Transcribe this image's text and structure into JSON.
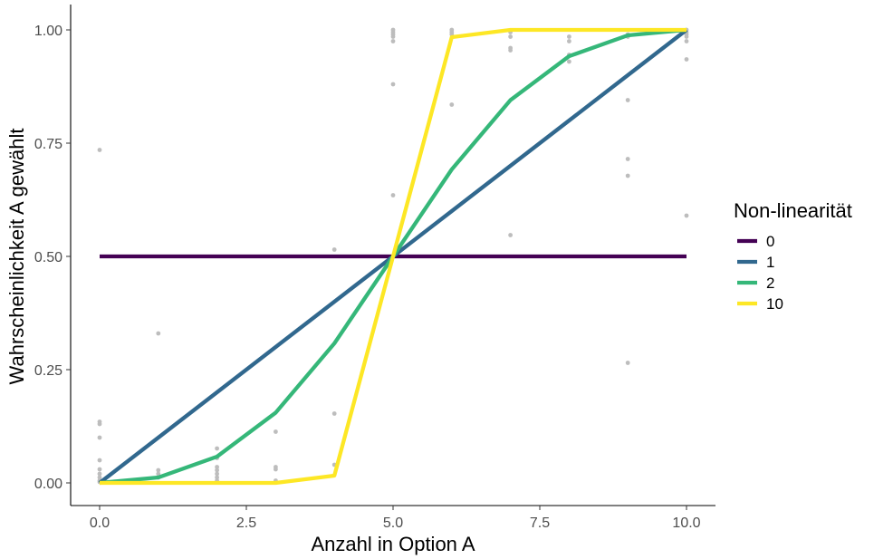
{
  "chart_data": {
    "type": "line",
    "xlabel": "Anzahl in Option A",
    "ylabel": "Wahrscheinlichkeit A gewählt",
    "xlim": [
      -0.5,
      10.5
    ],
    "ylim": [
      -0.05,
      1.05
    ],
    "x_ticks": [
      0,
      2.5,
      5,
      7.5,
      10
    ],
    "x_tick_labels": [
      "0.0",
      "2.5",
      "5.0",
      "7.5",
      "10.0"
    ],
    "y_ticks": [
      0,
      0.25,
      0.5,
      0.75,
      1
    ],
    "y_tick_labels": [
      "0.00",
      "0.25",
      "0.50",
      "0.75",
      "1.00"
    ],
    "grid": false,
    "legend": {
      "title": "Non-linearität",
      "placement": "right"
    },
    "series": [
      {
        "name": "0",
        "color": "#440154",
        "x": [
          0,
          1,
          2,
          3,
          4,
          5,
          6,
          7,
          8,
          9,
          10
        ],
        "values": [
          0.5,
          0.5,
          0.5,
          0.5,
          0.5,
          0.5,
          0.5,
          0.5,
          0.5,
          0.5,
          0.5
        ]
      },
      {
        "name": "1",
        "color": "#31688e",
        "x": [
          0,
          1,
          2,
          3,
          4,
          5,
          6,
          7,
          8,
          9,
          10
        ],
        "values": [
          0,
          0.1,
          0.2,
          0.3,
          0.4,
          0.5,
          0.6,
          0.7,
          0.8,
          0.9,
          1.0
        ]
      },
      {
        "name": "2",
        "color": "#35b779",
        "x": [
          0,
          1,
          2,
          3,
          4,
          5,
          6,
          7,
          8,
          9,
          10
        ],
        "values": [
          0,
          0.012,
          0.058,
          0.155,
          0.308,
          0.5,
          0.692,
          0.845,
          0.942,
          0.988,
          1.0
        ]
      },
      {
        "name": "10",
        "color": "#fde725",
        "x": [
          0,
          1,
          2,
          3,
          4,
          5,
          6,
          7,
          8,
          9,
          10
        ],
        "values": [
          0,
          0,
          0,
          0,
          0.016,
          0.5,
          0.984,
          1.0,
          1.0,
          1.0,
          1.0
        ]
      }
    ],
    "points": {
      "color": "#bdbdbd",
      "data": [
        [
          0,
          0.735
        ],
        [
          0,
          0.135
        ],
        [
          0,
          0.13
        ],
        [
          0,
          0.1
        ],
        [
          0,
          0.05
        ],
        [
          0,
          0.03
        ],
        [
          0,
          0.02
        ],
        [
          0,
          0.012
        ],
        [
          0,
          0.005
        ],
        [
          0,
          0.002
        ],
        [
          1,
          0.33
        ],
        [
          1,
          0.028
        ],
        [
          1,
          0.02
        ],
        [
          1,
          0.012
        ],
        [
          2,
          0.076
        ],
        [
          2,
          0.055
        ],
        [
          2,
          0.035
        ],
        [
          2,
          0.028
        ],
        [
          2,
          0.02
        ],
        [
          2,
          0.012
        ],
        [
          2,
          0.005
        ],
        [
          3,
          0.113
        ],
        [
          3,
          0.035
        ],
        [
          3,
          0.03
        ],
        [
          3,
          0.005
        ],
        [
          3,
          0.002
        ],
        [
          4,
          0.515
        ],
        [
          4,
          0.153
        ],
        [
          4,
          0.04
        ],
        [
          5,
          1.0
        ],
        [
          5,
          0.995
        ],
        [
          5,
          0.99
        ],
        [
          5,
          0.985
        ],
        [
          5,
          0.975
        ],
        [
          5,
          0.88
        ],
        [
          5,
          0.635
        ],
        [
          6,
          1.0
        ],
        [
          6,
          0.995
        ],
        [
          6,
          0.99
        ],
        [
          6,
          0.835
        ],
        [
          7,
          0.995
        ],
        [
          7,
          0.985
        ],
        [
          7,
          0.96
        ],
        [
          7,
          0.955
        ],
        [
          7,
          0.547
        ],
        [
          8,
          0.985
        ],
        [
          8,
          0.975
        ],
        [
          8,
          0.945
        ],
        [
          8,
          0.93
        ],
        [
          9,
          0.99
        ],
        [
          9,
          0.985
        ],
        [
          9,
          0.845
        ],
        [
          9,
          0.715
        ],
        [
          9,
          0.678
        ],
        [
          9,
          0.265
        ],
        [
          10,
          1.0
        ],
        [
          10,
          0.995
        ],
        [
          10,
          0.99
        ],
        [
          10,
          0.985
        ],
        [
          10,
          0.975
        ],
        [
          10,
          0.935
        ],
        [
          10,
          0.59
        ]
      ]
    }
  }
}
